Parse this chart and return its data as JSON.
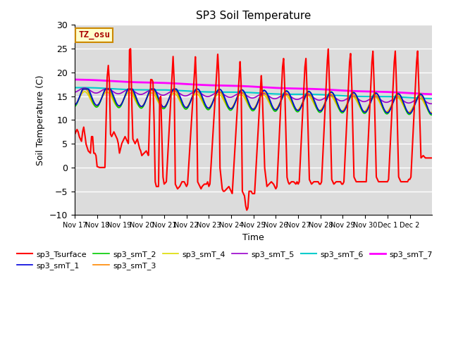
{
  "title": "SP3 Soil Temperature",
  "xlabel": "Time",
  "ylabel": "Soil Temperature (C)",
  "ylim": [
    -10,
    30
  ],
  "xlim": [
    0,
    16
  ],
  "background_color": "#dcdcdc",
  "annotation_text": "TZ_osu",
  "annotation_bg": "#ffffcc",
  "annotation_border": "#cc8800",
  "x_tick_labels": [
    "Nov 17",
    "Nov 18",
    "Nov 19",
    "Nov 20",
    "Nov 21",
    "Nov 22",
    "Nov 23",
    "Nov 24",
    "Nov 25",
    "Nov 26",
    "Nov 27",
    "Nov 28",
    "Nov 29",
    "Nov 30",
    "Dec 1",
    "Dec 2"
  ],
  "series": {
    "sp3_Tsurface": {
      "color": "#ff0000",
      "lw": 1.5
    },
    "sp3_smT_1": {
      "color": "#0000dd",
      "lw": 1.2
    },
    "sp3_smT_2": {
      "color": "#00cc00",
      "lw": 1.2
    },
    "sp3_smT_3": {
      "color": "#ff8800",
      "lw": 1.2
    },
    "sp3_smT_4": {
      "color": "#dddd00",
      "lw": 1.2
    },
    "sp3_smT_5": {
      "color": "#9900cc",
      "lw": 1.2
    },
    "sp3_smT_6": {
      "color": "#00cccc",
      "lw": 1.5
    },
    "sp3_smT_7": {
      "color": "#ff00ff",
      "lw": 2.0
    }
  }
}
